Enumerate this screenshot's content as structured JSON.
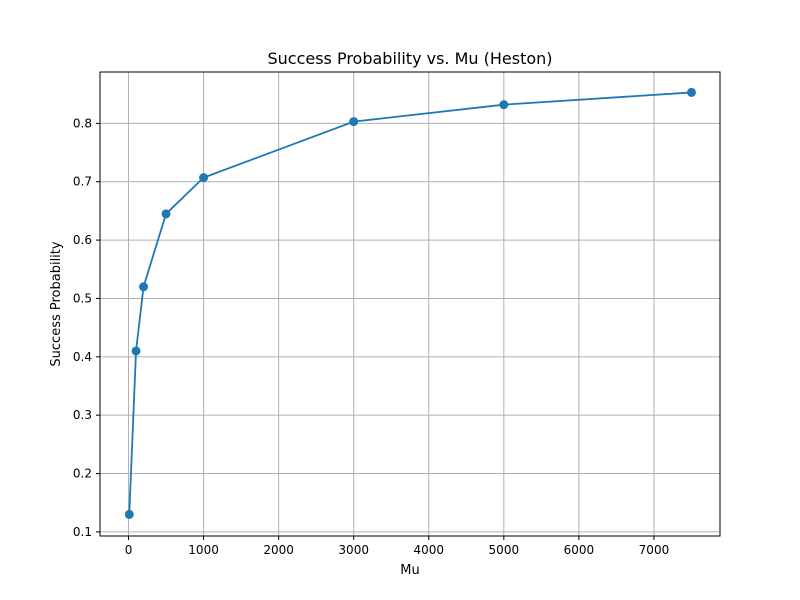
{
  "chart_data": {
    "type": "line",
    "title": "Success Probability vs. Mu (Heston)",
    "xlabel": "Mu",
    "ylabel": "Success Probability",
    "xlim": [
      -380,
      7880
    ],
    "ylim": [
      0.093,
      0.888
    ],
    "xticks": [
      0,
      1000,
      2000,
      3000,
      4000,
      5000,
      6000,
      7000
    ],
    "xtick_labels": [
      "0",
      "1000",
      "2000",
      "3000",
      "4000",
      "5000",
      "6000",
      "7000"
    ],
    "yticks": [
      0.1,
      0.2,
      0.3,
      0.4,
      0.5,
      0.6,
      0.7,
      0.8
    ],
    "ytick_labels": [
      "0.1",
      "0.2",
      "0.3",
      "0.4",
      "0.5",
      "0.6",
      "0.7",
      "0.8"
    ],
    "grid": true,
    "marker": "circle",
    "color": "#1f77b4",
    "series": [
      {
        "x": [
          10,
          100,
          200,
          500,
          1000,
          3000,
          5000,
          7500
        ],
        "y": [
          0.13,
          0.41,
          0.52,
          0.645,
          0.707,
          0.803,
          0.832,
          0.853
        ]
      }
    ]
  }
}
